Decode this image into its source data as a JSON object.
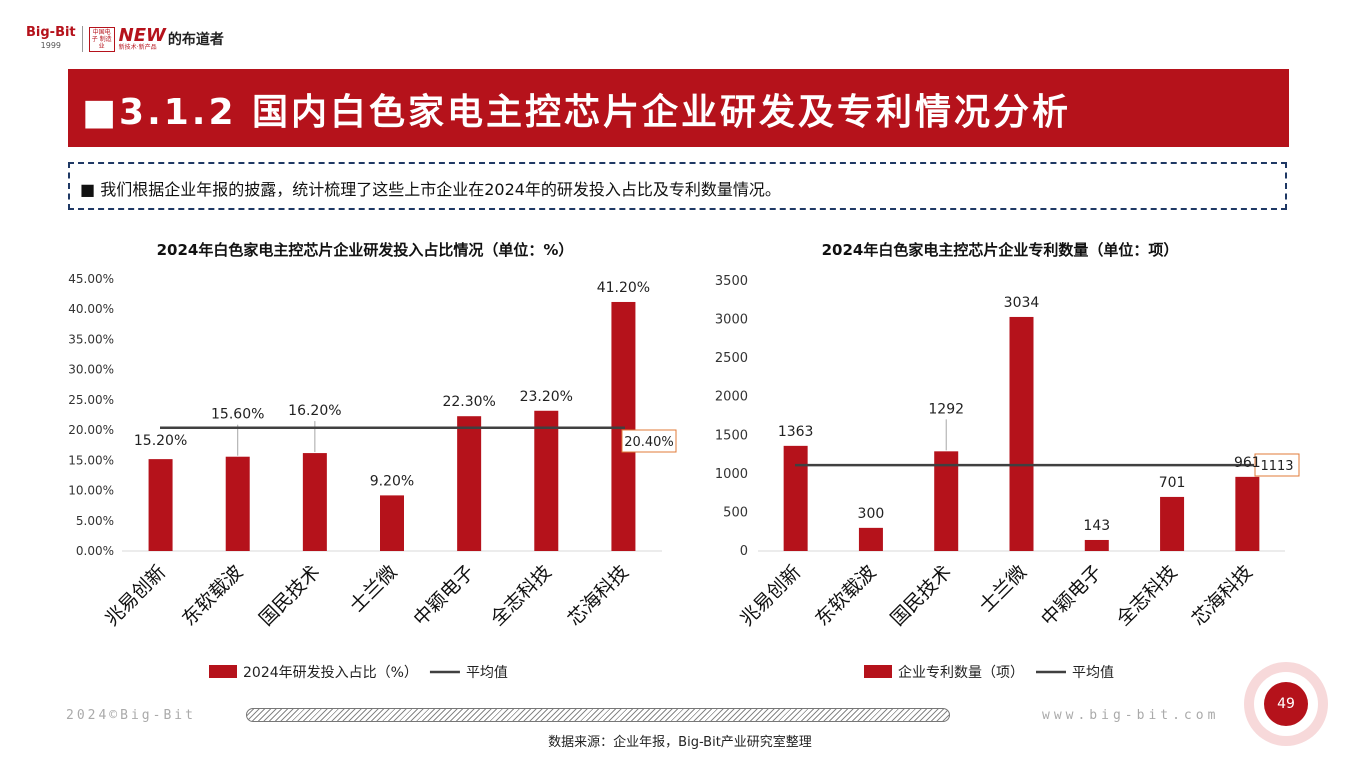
{
  "logo": {
    "brand": "Big-Bit",
    "year": "1999",
    "box_text": "中国电子 制造业",
    "new_text": "NEW",
    "new_sub": "新技术·新产品",
    "name": "的布道者"
  },
  "header": {
    "title": "■3.1.2 国内白色家电主控芯片企业研发及专利情况分析"
  },
  "note": {
    "text": "■ 我们根据企业年报的披露，统计梳理了这些上市企业在2024年的研发投入占比及专利数量情况。"
  },
  "colors": {
    "accent": "#b5121b",
    "bar": "#b5121b",
    "avg_line": "#404040",
    "callout_border": "#e07b39"
  },
  "chart_data": [
    {
      "type": "bar",
      "title": "2024年白色家电主控芯片企业研发投入占比情况（单位：%）",
      "categories": [
        "兆易创新",
        "东软载波",
        "国民技术",
        "士兰微",
        "中颖电子",
        "全志科技",
        "芯海科技"
      ],
      "series": [
        {
          "name": "2024年研发投入占比（%）",
          "values": [
            15.2,
            15.6,
            16.2,
            9.2,
            22.3,
            23.2,
            41.2
          ]
        }
      ],
      "value_labels": [
        "15.20%",
        "15.60%",
        "16.20%",
        "9.20%",
        "22.30%",
        "23.20%",
        "41.20%"
      ],
      "average": {
        "name": "平均值",
        "value": 20.4,
        "label": "20.40%"
      },
      "yticks": [
        "0.00%",
        "5.00%",
        "10.00%",
        "15.00%",
        "20.00%",
        "25.00%",
        "30.00%",
        "35.00%",
        "40.00%",
        "45.00%"
      ],
      "ylim": [
        0,
        45
      ],
      "legend": "bottom",
      "grid": false
    },
    {
      "type": "bar",
      "title": "2024年白色家电主控芯片企业专利数量（单位：项）",
      "categories": [
        "兆易创新",
        "东软载波",
        "国民技术",
        "士兰微",
        "中颖电子",
        "全志科技",
        "芯海科技"
      ],
      "series": [
        {
          "name": "企业专利数量（项）",
          "values": [
            1363,
            300,
            1292,
            3034,
            143,
            701,
            961
          ]
        }
      ],
      "value_labels": [
        "1363",
        "300",
        "1292",
        "3034",
        "143",
        "701",
        "961"
      ],
      "average": {
        "name": "平均值",
        "value": 1113,
        "label": "1113"
      },
      "yticks": [
        "0",
        "500",
        "1000",
        "1500",
        "2000",
        "2500",
        "3000",
        "3500"
      ],
      "ylim": [
        0,
        3500
      ],
      "legend": "bottom",
      "grid": false
    }
  ],
  "footer": {
    "copyright": "2024©Big-Bit",
    "website": "www.big-bit.com",
    "source": "数据来源：企业年报，Big-Bit产业研究室整理",
    "page_number": "49"
  }
}
